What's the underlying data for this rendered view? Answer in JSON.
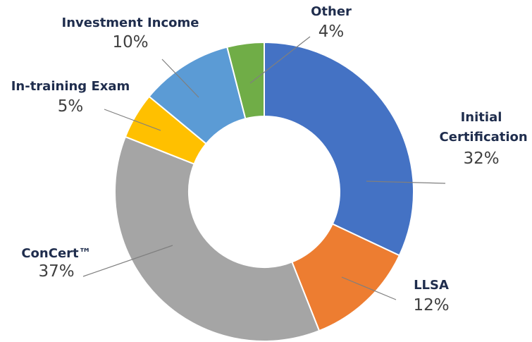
{
  "chart_data": {
    "type": "donut",
    "categories": [
      "Initial Certification",
      "LLSA",
      "ConCert™",
      "In-training Exam",
      "Investment Income",
      "Other"
    ],
    "values": [
      32,
      12,
      37,
      5,
      10,
      4
    ],
    "value_labels": [
      "32%",
      "12%",
      "37%",
      "5%",
      "10%",
      "4%"
    ],
    "colors": [
      "#4472c4",
      "#ed7d31",
      "#a5a5a5",
      "#ffc000",
      "#5b9bd5",
      "#70ad47"
    ]
  }
}
